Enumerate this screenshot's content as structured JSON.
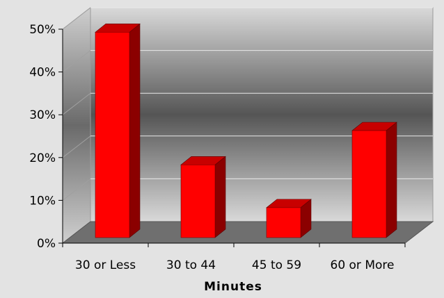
{
  "chart_data": {
    "type": "bar",
    "title": "",
    "xlabel": "Minutes",
    "ylabel": "",
    "categories": [
      "30 or Less",
      "30 to 44",
      "45 to 59",
      "60 or More"
    ],
    "values": [
      48,
      17,
      7,
      25
    ],
    "ylim": [
      0,
      50
    ],
    "yticks": [
      0,
      10,
      20,
      30,
      40,
      50
    ],
    "ytick_labels": [
      "0%",
      "10%",
      "20%",
      "30%",
      "40%",
      "50%"
    ],
    "grid": true,
    "legend": "none",
    "style": "3d",
    "colors": {
      "bar": "#ff0000",
      "bar_side": "#8b0000",
      "bar_top": "#c80000",
      "floor": "#6f6f6f",
      "wall_light": "#d6d6d6",
      "wall_dark": "#555555",
      "background": "#e3e3e3"
    }
  }
}
